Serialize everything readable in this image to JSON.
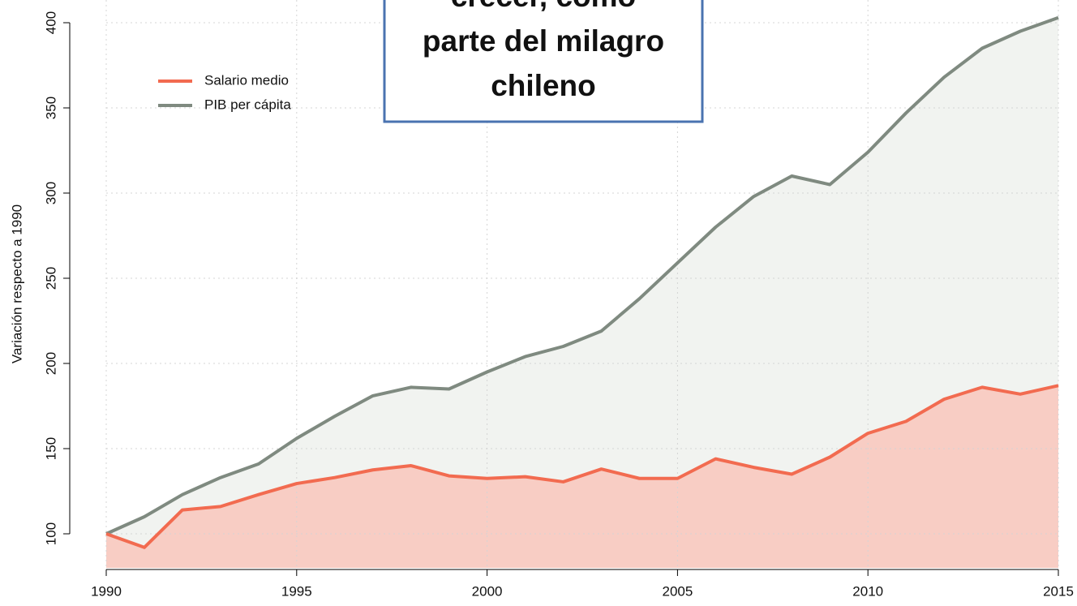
{
  "chart_data": {
    "type": "area",
    "y_label": "Variación respecto a 1990",
    "x": [
      1990,
      1991,
      1992,
      1993,
      1994,
      1995,
      1996,
      1997,
      1998,
      1999,
      2000,
      2001,
      2002,
      2003,
      2004,
      2005,
      2006,
      2007,
      2008,
      2009,
      2010,
      2011,
      2012,
      2013,
      2014,
      2015
    ],
    "series": [
      {
        "name": "Salario medio",
        "color": "#f26b50",
        "fill": "#f8cdc4",
        "values": [
          100,
          92,
          114,
          116,
          123,
          129.5,
          133,
          137.5,
          140,
          134,
          132.5,
          133.5,
          130.5,
          138,
          132.5,
          132.5,
          144,
          139,
          135,
          145,
          159,
          166,
          179,
          186,
          182,
          187
        ]
      },
      {
        "name": "PIB per cápita",
        "color": "#7f8a80",
        "fill": "#f1f3f0",
        "values": [
          100,
          110,
          123,
          133,
          141,
          156,
          169,
          181,
          186,
          185,
          195,
          204,
          210,
          219,
          238,
          259,
          280,
          298,
          310,
          305,
          324,
          347,
          368,
          385,
          395,
          403
        ]
      }
    ],
    "xlim": [
      1990,
      2015
    ],
    "xticks": [
      1990,
      1995,
      2000,
      2005,
      2010,
      2015
    ],
    "ylim": [
      80,
      413
    ],
    "yticks": [
      100,
      150,
      200,
      250,
      300,
      350,
      400
    ],
    "grid": true,
    "legend": "upper left",
    "annotation": [
      "crecer, como",
      "parte del milagro",
      "chileno"
    ]
  }
}
